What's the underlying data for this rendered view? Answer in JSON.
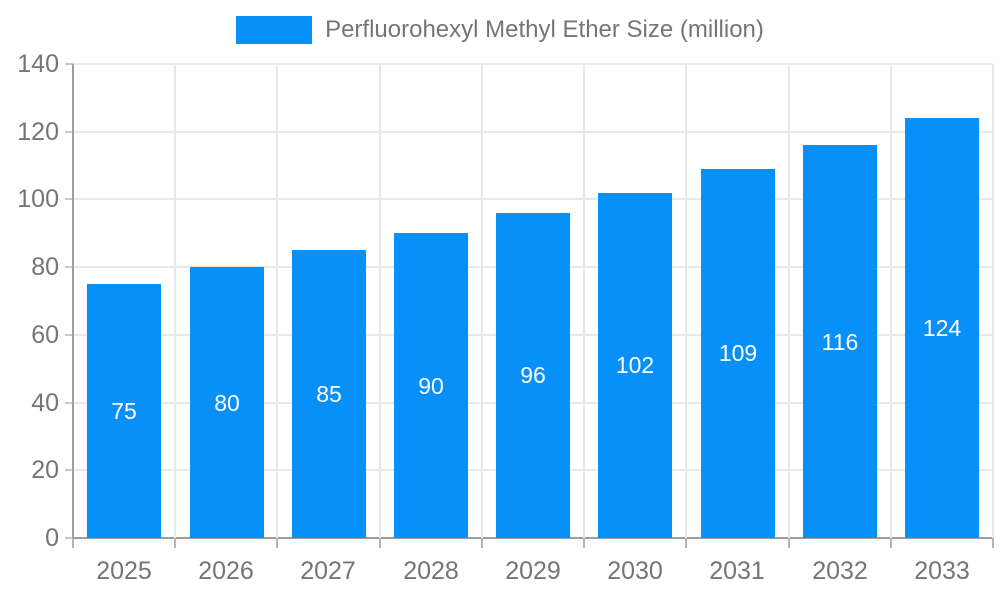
{
  "legend": {
    "label": "Perfluorohexyl Methyl Ether Size (million)"
  },
  "colors": {
    "bar": "#0890fa",
    "grid": "#e8e8e8",
    "axis": "#9e9e9e",
    "tick_text": "#757575",
    "bar_label_text": "#ffffff",
    "background": "#ffffff"
  },
  "chart_data": {
    "type": "bar",
    "title": "Perfluorohexyl Methyl Ether Size (million)",
    "categories": [
      "2025",
      "2026",
      "2027",
      "2028",
      "2029",
      "2030",
      "2031",
      "2032",
      "2033"
    ],
    "values": [
      75,
      80,
      85,
      90,
      96,
      102,
      109,
      116,
      124
    ],
    "series_name": "Perfluorohexyl Methyl Ether Size (million)",
    "xlabel": "",
    "ylabel": "",
    "ylim": [
      0,
      140
    ],
    "yticks": [
      0,
      20,
      40,
      60,
      80,
      100,
      120,
      140
    ],
    "grid": true,
    "legend_position": "top-center",
    "bar_value_labels": "centered-inside-white"
  }
}
